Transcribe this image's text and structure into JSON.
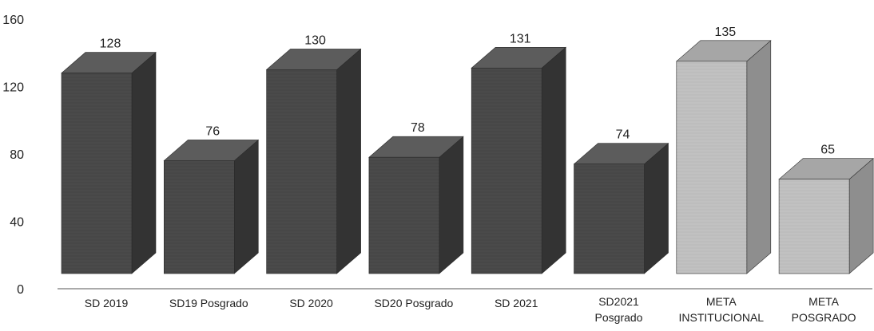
{
  "chart_data": {
    "type": "bar",
    "title": "",
    "xlabel": "",
    "ylabel": "",
    "ylim": [
      0,
      160
    ],
    "yticks": [
      "0",
      "40",
      "80",
      "120",
      "160"
    ],
    "grid": false,
    "legend": "none",
    "categories": [
      [
        "SD 2019"
      ],
      [
        "SD19 Posgrado"
      ],
      [
        "SD 2020"
      ],
      [
        "SD20 Posgrado"
      ],
      [
        "SD 2021"
      ],
      [
        "SD2021",
        "Posgrado"
      ],
      [
        "META",
        "INSTITUCIONAL"
      ],
      [
        "META",
        "POSGRADO"
      ]
    ],
    "values": [
      128,
      76,
      130,
      78,
      131,
      74,
      135,
      65
    ],
    "data_labels": [
      "128",
      "76",
      "130",
      "78",
      "131",
      "74",
      "135",
      "65"
    ],
    "colors": {
      "actual_front": "#4a4a4a",
      "actual_side": "#333333",
      "actual_top": "#5c5c5c",
      "goal_front": "#bdbdbd",
      "goal_side": "#8e8e8e",
      "goal_top": "#a6a6a6",
      "axis": "#555555"
    },
    "bar_groups": [
      "actual",
      "actual",
      "actual",
      "actual",
      "actual",
      "actual",
      "goal",
      "goal"
    ]
  }
}
